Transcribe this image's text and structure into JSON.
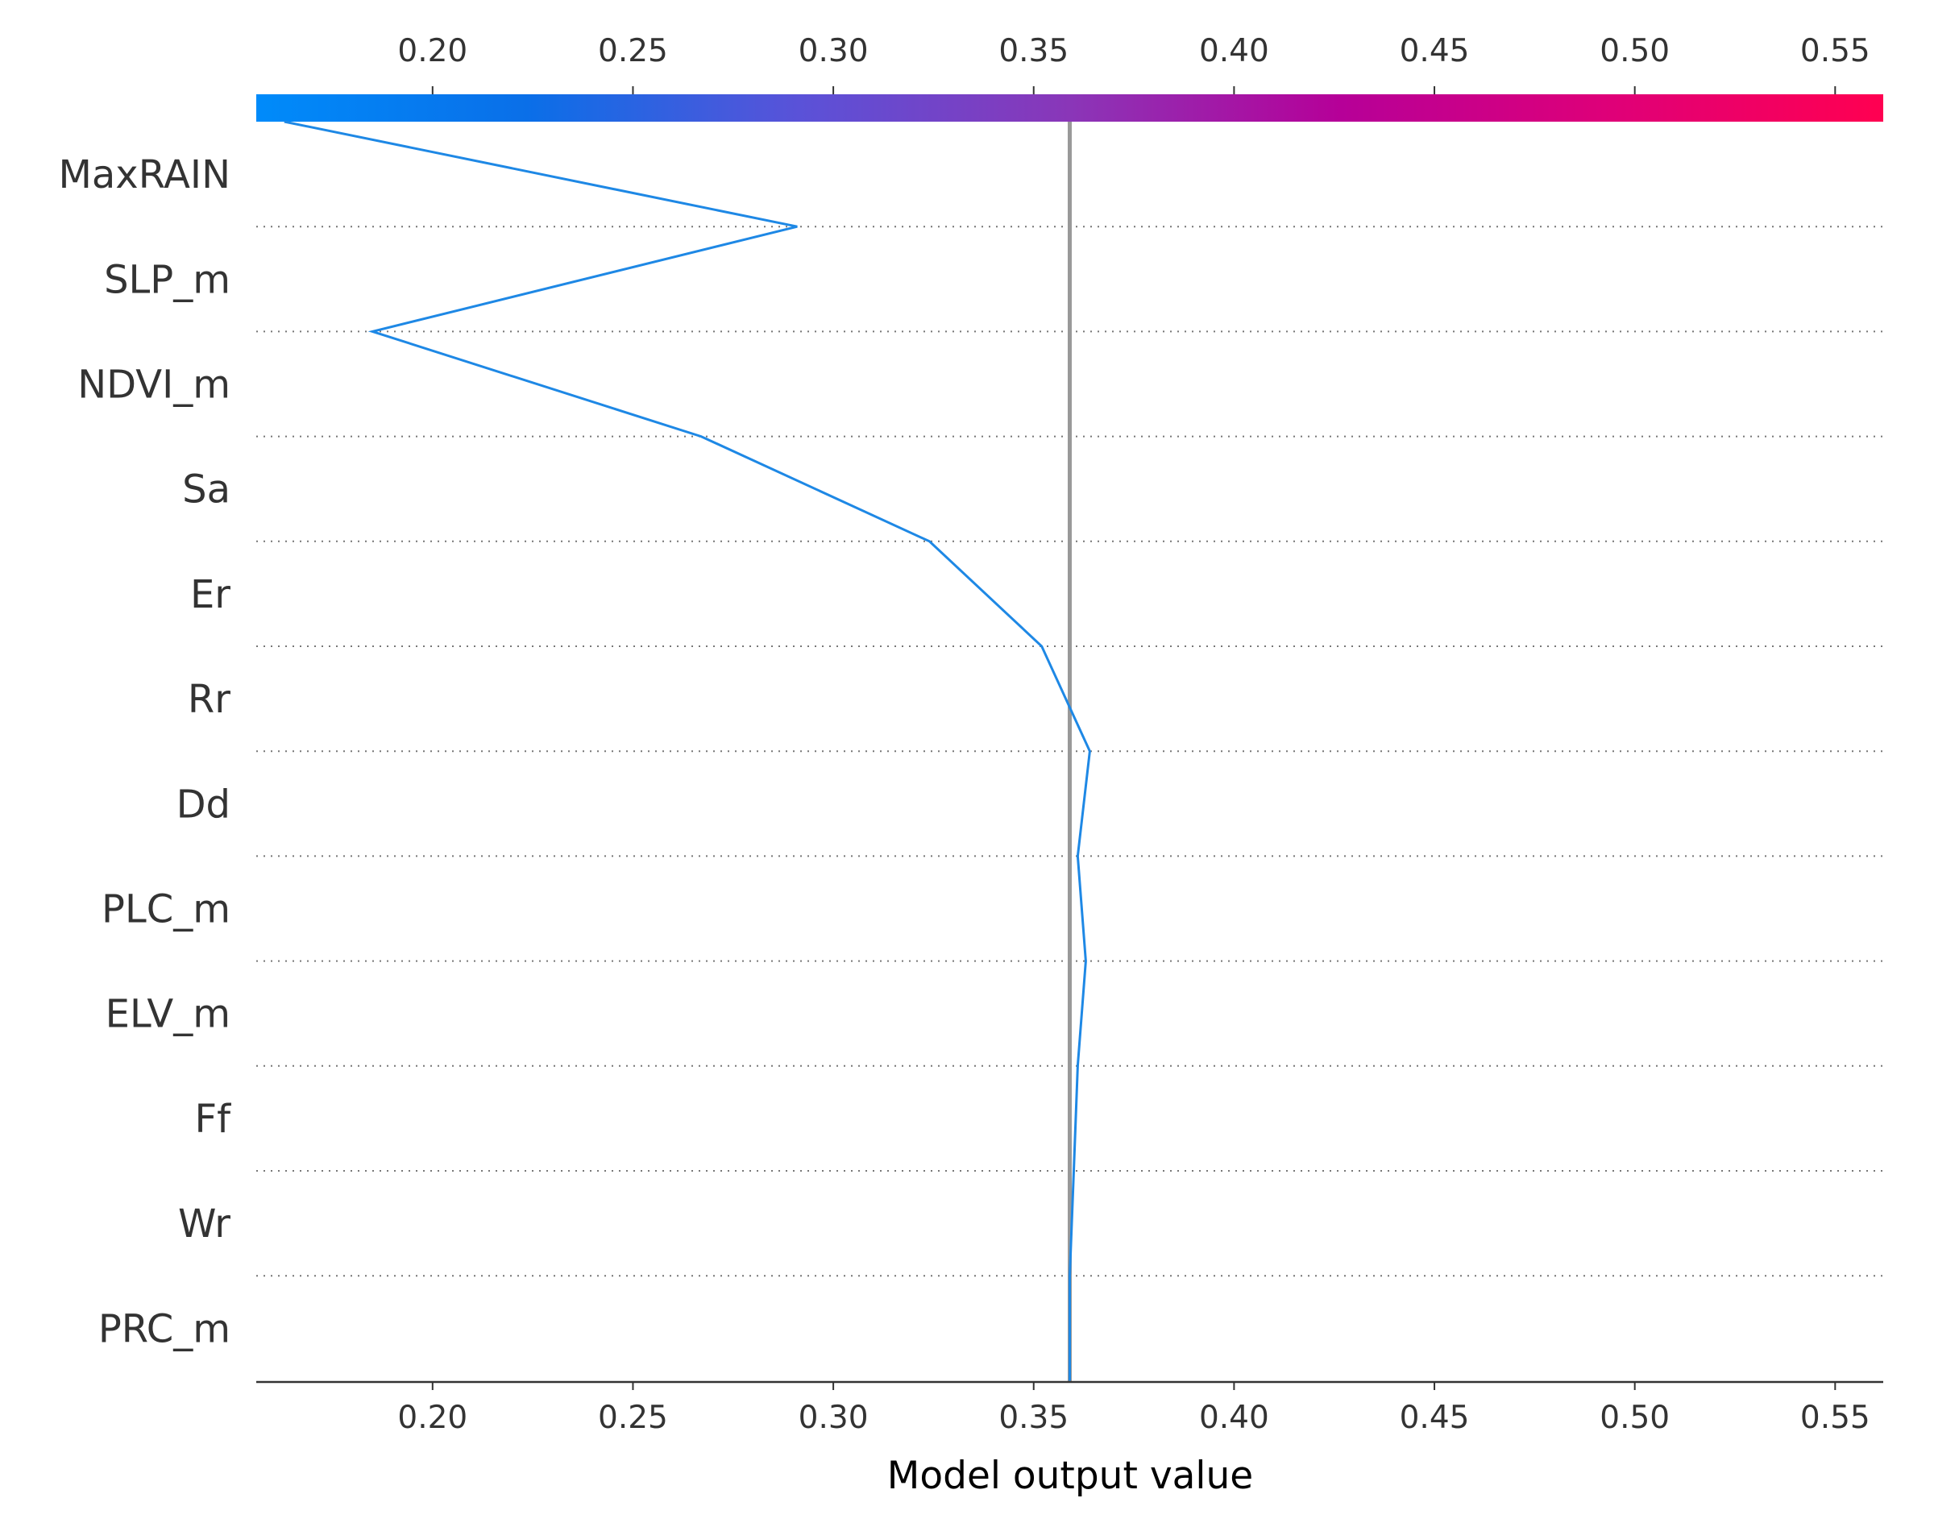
{
  "chart_data": {
    "type": "line",
    "xlabel": "Model output value",
    "xlim": [
      0.156,
      0.562
    ],
    "xticks": [
      "0.20",
      "0.25",
      "0.30",
      "0.35",
      "0.40",
      "0.45",
      "0.50",
      "0.55"
    ],
    "tick_values": [
      0.2,
      0.25,
      0.3,
      0.35,
      0.4,
      0.45,
      0.5,
      0.55
    ],
    "base_value": 0.359,
    "features": [
      "MaxRAIN",
      "SLP_m",
      "NDVI_m",
      "Sa",
      "Er",
      "Rr",
      "Dd",
      "PLC_m",
      "ELV_m",
      "Ff",
      "Wr",
      "PRC_m"
    ],
    "path_values": [
      0.163,
      0.291,
      0.185,
      0.267,
      0.324,
      0.352,
      0.364,
      0.361,
      0.363,
      0.361,
      0.36,
      0.359,
      0.359
    ],
    "colormap": [
      "#008bfa",
      "#0a6fe8",
      "#5a52d8",
      "#8a36b8",
      "#b60098",
      "#df0078",
      "#ff0051"
    ],
    "colors": {
      "path": "#1e88e5",
      "base_line": "#999999",
      "grid": "#777777",
      "axis": "#333333"
    }
  }
}
